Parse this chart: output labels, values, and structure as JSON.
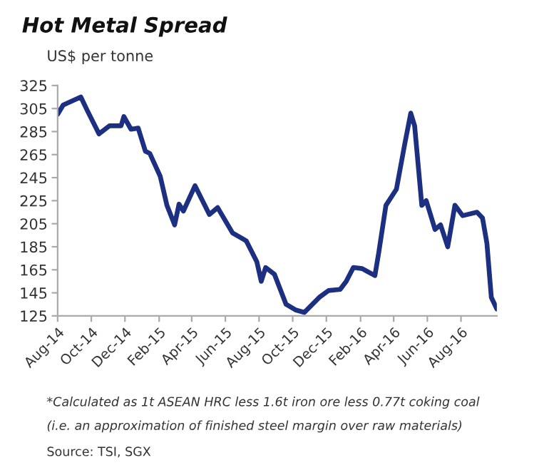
{
  "chart_data": {
    "type": "line",
    "title": "Hot Metal Spread",
    "ylabel": "US$ per tonne",
    "annotations": [
      "*Calculated as 1t ASEAN HRC less 1.6t iron ore less 0.77t coking coal",
      "(i.e. an approximation of finished steel margin over raw materials)",
      "Source: TSI, SGX"
    ],
    "x": [
      "2014-08-01",
      "2014-08-11",
      "2014-09-12",
      "2014-09-24",
      "2014-10-15",
      "2014-11-03",
      "2014-11-24",
      "2014-11-29",
      "2014-12-12",
      "2014-12-25",
      "2015-01-07",
      "2015-01-15",
      "2015-02-03",
      "2015-02-15",
      "2015-03-01",
      "2015-03-09",
      "2015-03-17",
      "2015-04-07",
      "2015-05-03",
      "2015-05-18",
      "2015-06-14",
      "2015-07-02",
      "2015-07-09",
      "2015-07-28",
      "2015-08-05",
      "2015-08-13",
      "2015-08-29",
      "2015-09-19",
      "2015-10-07",
      "2015-10-22",
      "2015-11-18",
      "2015-12-05",
      "2015-12-26",
      "2016-01-06",
      "2016-01-19",
      "2016-02-04",
      "2016-02-27",
      "2016-03-05",
      "2016-03-18",
      "2016-04-06",
      "2016-04-21",
      "2016-05-02",
      "2016-05-09",
      "2016-05-22",
      "2016-05-30",
      "2016-06-15",
      "2016-06-25",
      "2016-07-08",
      "2016-07-21",
      "2016-08-04",
      "2016-08-30",
      "2016-09-09",
      "2016-09-17",
      "2016-09-25",
      "2016-10-05"
    ],
    "series": [
      {
        "color": "#1c2f80",
        "values": [
          300,
          308,
          315,
          303,
          283,
          290,
          290,
          298,
          287,
          288,
          268,
          266,
          246,
          221,
          204,
          222,
          216,
          238,
          213,
          219,
          197,
          192,
          190,
          172,
          155,
          167,
          161,
          135,
          130,
          128,
          141,
          147,
          148,
          155,
          167,
          166,
          160,
          180,
          221,
          235,
          274,
          301,
          290,
          221,
          225,
          200,
          204,
          185,
          221,
          212,
          215,
          210,
          188,
          141,
          131
        ]
      }
    ],
    "xlim": [
      "2014-08-01",
      "2016-10-05"
    ],
    "xticks": [
      {
        "value": "2014-08-01",
        "label": "Aug-14"
      },
      {
        "value": "2014-10-01",
        "label": "Oct-14"
      },
      {
        "value": "2014-12-01",
        "label": "Dec-14"
      },
      {
        "value": "2015-02-01",
        "label": "Feb-15"
      },
      {
        "value": "2015-04-01",
        "label": "Apr-15"
      },
      {
        "value": "2015-06-01",
        "label": "Jun-15"
      },
      {
        "value": "2015-08-01",
        "label": "Aug-15"
      },
      {
        "value": "2015-10-01",
        "label": "Oct-15"
      },
      {
        "value": "2015-12-01",
        "label": "Dec-15"
      },
      {
        "value": "2016-02-01",
        "label": "Feb-16"
      },
      {
        "value": "2016-04-01",
        "label": "Apr-16"
      },
      {
        "value": "2016-06-01",
        "label": "Jun-16"
      },
      {
        "value": "2016-08-01",
        "label": "Aug-16"
      }
    ],
    "ylim": [
      125,
      325
    ],
    "yticks": [
      125,
      145,
      165,
      185,
      205,
      225,
      245,
      265,
      285,
      305,
      325
    ],
    "grid": false,
    "legend": false,
    "marker": "none",
    "line_style": "solid"
  }
}
